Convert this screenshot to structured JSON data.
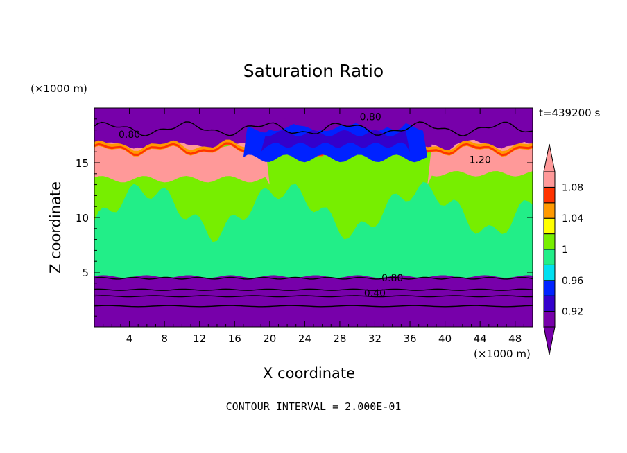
{
  "chart_data": {
    "type": "heatmap",
    "title": "Saturation Ratio",
    "xlabel": "X coordinate",
    "ylabel": "Z coordinate",
    "x_unit_label": "(×1000 m)",
    "y_unit_label": "(×1000 m)",
    "time_label": "t=439200 s",
    "footer": "CONTOUR INTERVAL = 2.000E-01",
    "xlim": [
      0,
      50
    ],
    "ylim": [
      0,
      20
    ],
    "x_ticks": [
      4,
      8,
      12,
      16,
      20,
      24,
      28,
      32,
      36,
      40,
      44,
      48
    ],
    "y_ticks": [
      5,
      10,
      15
    ],
    "colorbar": {
      "levels": [
        0.92,
        0.94,
        0.96,
        0.98,
        1.0,
        1.02,
        1.04,
        1.06,
        1.08,
        1.1
      ],
      "labels": [
        "1.08",
        "1.04",
        "1",
        "0.96",
        "0.92"
      ],
      "label_values": [
        1.08,
        1.04,
        1.0,
        0.96,
        0.92
      ],
      "colors": [
        "#7700aa",
        "#3300cc",
        "#0022ff",
        "#00e0f0",
        "#22ee88",
        "#77ee00",
        "#ffff00",
        "#ff9900",
        "#ff3300",
        "#ff9999"
      ]
    },
    "contour_labels": [
      {
        "text": "0.80",
        "x": 31.5,
        "z": 19.2
      },
      {
        "text": "0.80",
        "x": 4.0,
        "z": 17.6
      },
      {
        "text": "1.20",
        "x": 44.0,
        "z": 15.3
      },
      {
        "text": "0.80",
        "x": 34.0,
        "z": 4.5
      },
      {
        "text": "0.40",
        "x": 32.0,
        "z": 3.1
      }
    ]
  }
}
